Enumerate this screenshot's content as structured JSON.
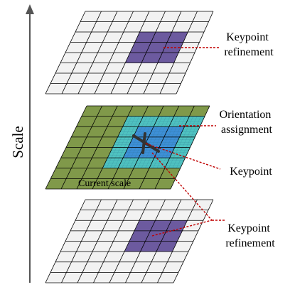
{
  "scale_axis": {
    "label": "Scale"
  },
  "layers": {
    "top": {
      "fill": "#f2f2f2",
      "highlight": "#6c5a9f"
    },
    "middle": {
      "label": "Current scale",
      "base_fill": "#80994a",
      "outer_region_fill": "#4fc2c0",
      "inner_region_fill": "#3d8fd6",
      "marker": "x-mark"
    },
    "bottom": {
      "fill": "#f2f2f2",
      "highlight": "#6c5a9f"
    }
  },
  "annotations": [
    {
      "lines": [
        "Keypoint",
        "refinement"
      ]
    },
    {
      "lines": [
        "Orientation",
        "assignment"
      ]
    },
    {
      "lines": [
        "Keypoint"
      ]
    },
    {
      "lines": [
        "Keypoint",
        "refinement"
      ]
    }
  ],
  "colors": {
    "leader_line": "#c00000",
    "grid_line": "#000000",
    "axis": "#555555"
  }
}
